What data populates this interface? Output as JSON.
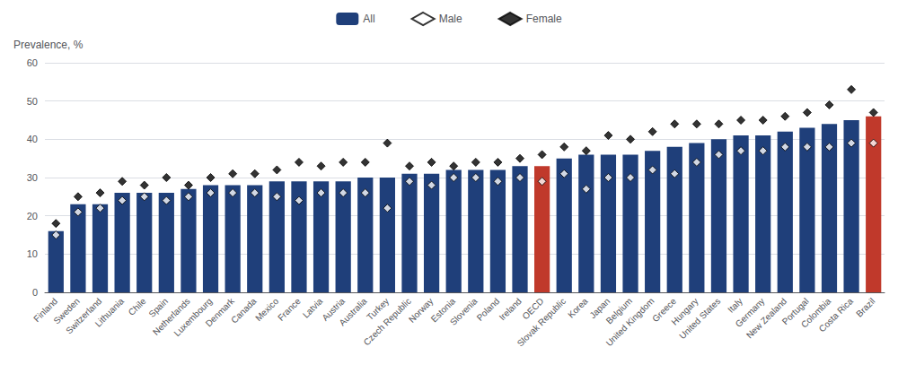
{
  "chart_data": {
    "type": "bar",
    "ylabel": "Prevalence, %",
    "categories": [
      "Finland",
      "Sweden",
      "Switzerland",
      "Lithuania",
      "Chile",
      "Spain",
      "Netherlands",
      "Luxembourg",
      "Denmark",
      "Canada",
      "Mexico",
      "France",
      "Latvia",
      "Austria",
      "Australia",
      "Turkey",
      "Czech Republic",
      "Norway",
      "Estonia",
      "Slovenia",
      "Poland",
      "Ireland",
      "OECD",
      "Slovak Republic",
      "Korea",
      "Japan",
      "Belgium",
      "United Kingdom",
      "Greece",
      "Hungary",
      "United States",
      "Italy",
      "Germany",
      "New Zealand",
      "Portugal",
      "Colombia",
      "Costa Rica",
      "Brazil"
    ],
    "series": [
      {
        "name": "All",
        "type": "bar",
        "colors": [
          "#1f3f7a",
          "#1f3f7a",
          "#1f3f7a",
          "#1f3f7a",
          "#1f3f7a",
          "#1f3f7a",
          "#1f3f7a",
          "#1f3f7a",
          "#1f3f7a",
          "#1f3f7a",
          "#1f3f7a",
          "#1f3f7a",
          "#1f3f7a",
          "#1f3f7a",
          "#1f3f7a",
          "#1f3f7a",
          "#1f3f7a",
          "#1f3f7a",
          "#1f3f7a",
          "#1f3f7a",
          "#1f3f7a",
          "#1f3f7a",
          "#c0392b",
          "#1f3f7a",
          "#1f3f7a",
          "#1f3f7a",
          "#1f3f7a",
          "#1f3f7a",
          "#1f3f7a",
          "#1f3f7a",
          "#1f3f7a",
          "#1f3f7a",
          "#1f3f7a",
          "#1f3f7a",
          "#1f3f7a",
          "#1f3f7a",
          "#1f3f7a",
          "#c0392b"
        ],
        "values": [
          16,
          23,
          23,
          26,
          26,
          26,
          27,
          28,
          28,
          28,
          29,
          29,
          29,
          29,
          30,
          30,
          31,
          31,
          32,
          32,
          32,
          33,
          33,
          35,
          36,
          36,
          36,
          37,
          38,
          39,
          40,
          41,
          41,
          42,
          43,
          44,
          45,
          46
        ]
      },
      {
        "name": "Male",
        "type": "scatter",
        "marker": "open_diamond",
        "color": "#000000",
        "values": [
          15,
          21,
          22,
          24,
          25,
          24,
          25,
          26,
          26,
          26,
          25,
          24,
          26,
          26,
          26,
          22,
          29,
          28,
          30,
          30,
          29,
          30,
          29,
          31,
          27,
          30,
          30,
          32,
          31,
          34,
          36,
          37,
          37,
          38,
          38,
          38,
          39,
          39
        ]
      },
      {
        "name": "Female",
        "type": "scatter",
        "marker": "diamond",
        "color": "#000000",
        "values": [
          18,
          25,
          26,
          29,
          28,
          30,
          28,
          30,
          31,
          31,
          32,
          34,
          33,
          34,
          34,
          39,
          33,
          34,
          33,
          34,
          34,
          35,
          36,
          38,
          37,
          41,
          40,
          42,
          44,
          44,
          44,
          45,
          45,
          46,
          47,
          49,
          53,
          47
        ]
      }
    ],
    "ylim": [
      0,
      60
    ],
    "yticks": [
      0,
      10,
      20,
      30,
      40,
      50,
      60
    ],
    "grid": true,
    "legend": "top"
  }
}
